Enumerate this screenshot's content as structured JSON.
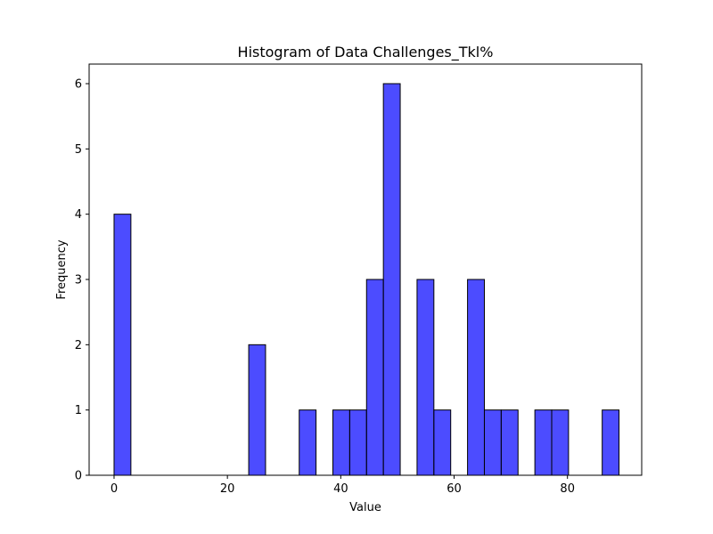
{
  "chart_data": {
    "type": "bar",
    "title": "Histogram of Data Challenges_Tkl%",
    "xlabel": "Value",
    "ylabel": "Frequency",
    "xlim": [
      -4.4,
      93.1
    ],
    "ylim": [
      0,
      6.3
    ],
    "bar_color": "#0000ff",
    "bar_opacity": 0.7,
    "edge_color": "#000000",
    "grid": false,
    "xticks": [
      0,
      20,
      40,
      60,
      80
    ],
    "yticks": [
      0,
      1,
      2,
      3,
      4,
      5,
      6
    ],
    "bins": [
      {
        "x0": 0.0,
        "x1": 2.97,
        "count": 4
      },
      {
        "x0": 2.97,
        "x1": 5.94,
        "count": 0
      },
      {
        "x0": 5.94,
        "x1": 8.91,
        "count": 0
      },
      {
        "x0": 8.91,
        "x1": 11.88,
        "count": 0
      },
      {
        "x0": 11.88,
        "x1": 14.85,
        "count": 0
      },
      {
        "x0": 14.85,
        "x1": 17.82,
        "count": 0
      },
      {
        "x0": 17.82,
        "x1": 20.79,
        "count": 0
      },
      {
        "x0": 20.79,
        "x1": 23.76,
        "count": 0
      },
      {
        "x0": 23.76,
        "x1": 26.73,
        "count": 2
      },
      {
        "x0": 26.73,
        "x1": 29.7,
        "count": 0
      },
      {
        "x0": 29.7,
        "x1": 32.67,
        "count": 0
      },
      {
        "x0": 32.67,
        "x1": 35.64,
        "count": 1
      },
      {
        "x0": 35.64,
        "x1": 38.61,
        "count": 0
      },
      {
        "x0": 38.61,
        "x1": 41.58,
        "count": 1
      },
      {
        "x0": 41.58,
        "x1": 44.55,
        "count": 1
      },
      {
        "x0": 44.55,
        "x1": 47.52,
        "count": 3
      },
      {
        "x0": 47.52,
        "x1": 50.49,
        "count": 6
      },
      {
        "x0": 50.49,
        "x1": 53.46,
        "count": 0
      },
      {
        "x0": 53.46,
        "x1": 56.43,
        "count": 3
      },
      {
        "x0": 56.43,
        "x1": 59.4,
        "count": 1
      },
      {
        "x0": 59.4,
        "x1": 62.37,
        "count": 0
      },
      {
        "x0": 62.37,
        "x1": 65.34,
        "count": 3
      },
      {
        "x0": 65.34,
        "x1": 68.31,
        "count": 1
      },
      {
        "x0": 68.31,
        "x1": 71.28,
        "count": 1
      },
      {
        "x0": 71.28,
        "x1": 74.25,
        "count": 0
      },
      {
        "x0": 74.25,
        "x1": 77.22,
        "count": 1
      },
      {
        "x0": 77.22,
        "x1": 80.19,
        "count": 1
      },
      {
        "x0": 80.19,
        "x1": 83.16,
        "count": 0
      },
      {
        "x0": 83.16,
        "x1": 86.13,
        "count": 0
      },
      {
        "x0": 86.13,
        "x1": 89.1,
        "count": 1
      }
    ]
  }
}
